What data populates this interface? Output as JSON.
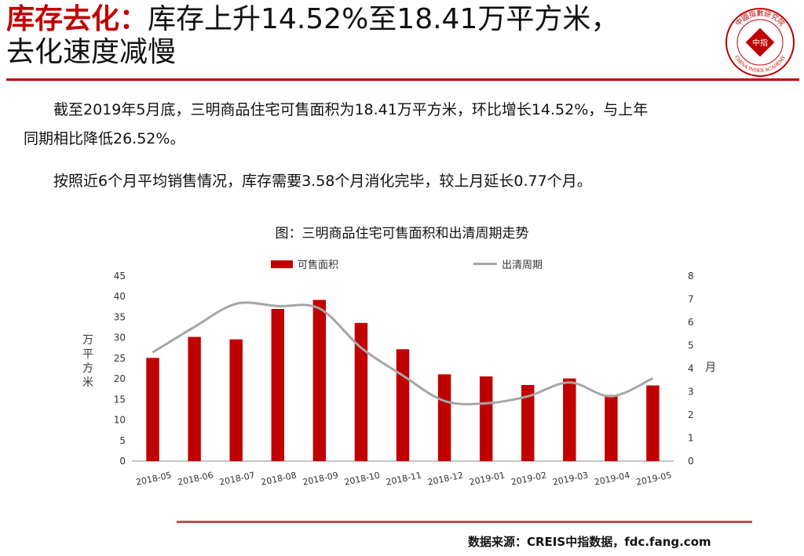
{
  "header": {
    "title_accent": "库存去化：",
    "title_rest": "库存上升14.52%至18.41万平方米，",
    "title_line2": "去化速度减慢",
    "logo_text_top": "中國指數研究院",
    "logo_text_center": "中指",
    "logo_text_bottom": "CHINA INDEX ACADEMY",
    "accent_color": "#c00000"
  },
  "body": {
    "para1_line1": "截至2019年5月底，三明商品住宅可售面积为18.41万平方米，环比增长14.52%，与上年",
    "para1_line2": "同期相比降低26.52%。",
    "para2": "按照近6个月平均销售情况，库存需要3.58个月消化完毕，较上月延长0.77个月。"
  },
  "chart_data": {
    "type": "bar",
    "title": "图：三明商品住宅可售面积和出清周期走势",
    "categories": [
      "2018-05",
      "2018-06",
      "2018-07",
      "2018-08",
      "2018-09",
      "2018-10",
      "2018-11",
      "2018-12",
      "2019-01",
      "2019-02",
      "2019-03",
      "2019-04",
      "2019-05"
    ],
    "series": [
      {
        "name": "可售面积",
        "type": "bar",
        "axis": "left",
        "color": "#c00000",
        "values": [
          25.1,
          30.2,
          29.6,
          37.0,
          39.2,
          33.6,
          27.2,
          21.1,
          20.6,
          18.5,
          20.1,
          16.1,
          18.4
        ]
      },
      {
        "name": "出清周期",
        "type": "line",
        "axis": "right",
        "color": "#a6a6a6",
        "values": [
          4.7,
          5.8,
          6.8,
          6.7,
          6.6,
          4.9,
          3.7,
          2.6,
          2.5,
          2.8,
          3.4,
          2.8,
          3.58
        ]
      }
    ],
    "ylabel": "万平方米",
    "y2label": "月",
    "ylim": [
      0,
      45
    ],
    "y2lim": [
      0,
      8
    ],
    "yticks": [
      "0",
      "5",
      "10",
      "15",
      "20",
      "25",
      "30",
      "35",
      "40",
      "45"
    ],
    "y2ticks": [
      "0",
      "1",
      "2",
      "3",
      "4",
      "5",
      "6",
      "7",
      "8"
    ],
    "legend_position": "top",
    "grid": false
  },
  "footer": {
    "source": "数据来源：CREIS中指数据，fdc.fang.com"
  }
}
